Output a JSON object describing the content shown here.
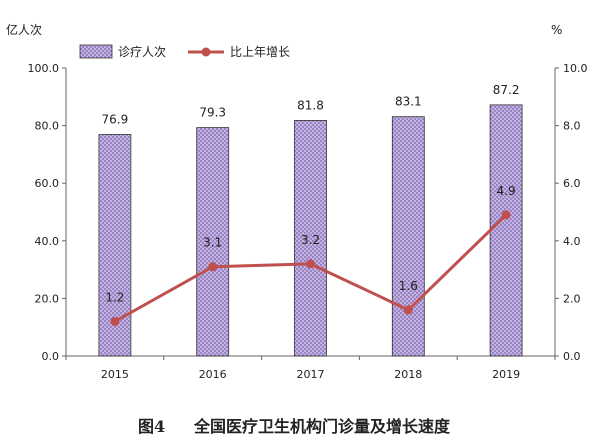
{
  "chart_data": {
    "type": "bar",
    "categories": [
      "2015",
      "2016",
      "2017",
      "2018",
      "2019"
    ],
    "series": [
      {
        "name": "诊疗人次",
        "type": "bar",
        "axis": "left",
        "values": [
          76.9,
          79.3,
          81.8,
          83.1,
          87.2
        ],
        "labels": [
          "76.9",
          "79.3",
          "81.8",
          "83.1",
          "87.2"
        ],
        "color": "#b6a0d8"
      },
      {
        "name": "比上年增长",
        "type": "line",
        "axis": "right",
        "values": [
          1.2,
          3.1,
          3.2,
          1.6,
          4.9
        ],
        "labels": [
          "1.2",
          "3.1",
          "3.2",
          "1.6",
          "4.9"
        ],
        "color": "#c0504d"
      }
    ],
    "left_axis": {
      "unit": "亿人次",
      "ylim": [
        0,
        100
      ],
      "ticks": [
        "0.0",
        "20.0",
        "40.0",
        "60.0",
        "80.0",
        "100.0"
      ]
    },
    "right_axis": {
      "unit": "%",
      "ylim": [
        0,
        10
      ],
      "ticks": [
        "0.0",
        "2.0",
        "4.0",
        "6.0",
        "8.0",
        "10.0"
      ]
    },
    "legend_placement": "top-left",
    "grid": false,
    "caption": {
      "number": "图4",
      "title": "全国医疗卫生机构门诊量及增长速度"
    }
  }
}
